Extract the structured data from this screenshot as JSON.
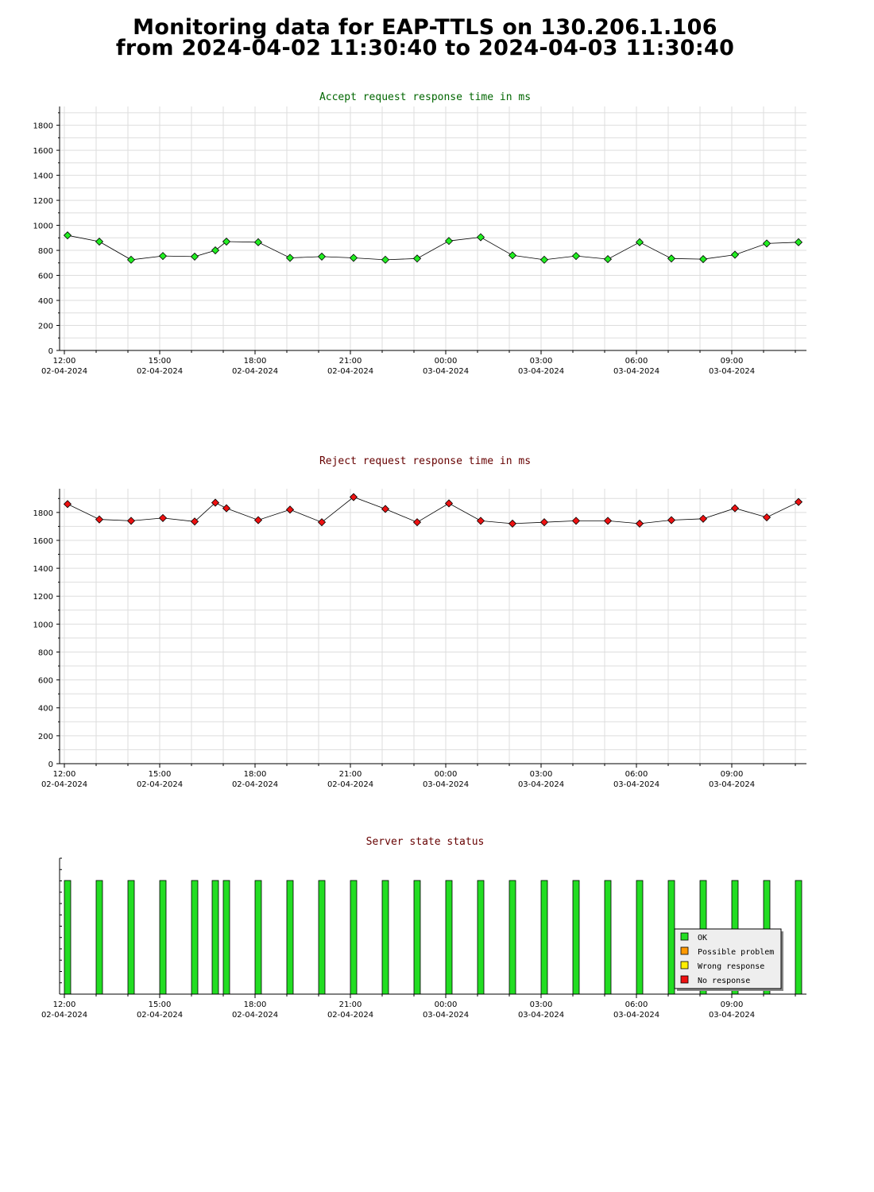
{
  "header": {
    "line1": "Monitoring data for EAP-TTLS on 130.206.1.106",
    "line2": "from 2024-04-02 11:30:40 to 2024-04-03 11:30:40"
  },
  "colors": {
    "accept_title": "#006600",
    "reject_title": "#660000",
    "status_title": "#660000",
    "accept_marker": "#22ee22",
    "reject_marker": "#ee1111",
    "grid": "#dddddd",
    "ok": "#22dd22",
    "possible_problem": "#ff9900",
    "wrong_response": "#ffee00",
    "no_response": "#ee1111"
  },
  "x_ticks": [
    {
      "time": "12:00",
      "date": "02-04-2024"
    },
    {
      "time": "15:00",
      "date": "02-04-2024"
    },
    {
      "time": "18:00",
      "date": "02-04-2024"
    },
    {
      "time": "21:00",
      "date": "02-04-2024"
    },
    {
      "time": "00:00",
      "date": "03-04-2024"
    },
    {
      "time": "03:00",
      "date": "03-04-2024"
    },
    {
      "time": "06:00",
      "date": "03-04-2024"
    },
    {
      "time": "09:00",
      "date": "03-04-2024"
    }
  ],
  "chart_data": [
    {
      "type": "line",
      "title": "Accept request response time in ms",
      "x_unit": "hours since 2024-04-02 12:00",
      "xlim": [
        -0.15,
        23.35
      ],
      "ylim": [
        0,
        1950
      ],
      "y_ticks": [
        0,
        200,
        400,
        600,
        800,
        1000,
        1200,
        1400,
        1600,
        1800
      ],
      "grid": true,
      "series": [
        {
          "x": [
            0.1,
            1.1,
            2.1,
            3.1,
            4.1,
            4.75,
            5.1,
            6.1,
            7.1,
            8.1,
            9.1,
            10.1,
            11.1,
            12.1,
            13.1,
            14.1,
            15.1,
            16.1,
            17.1,
            18.1,
            19.1,
            20.1,
            21.1,
            22.1,
            23.1
          ],
          "values": [
            920,
            870,
            725,
            755,
            750,
            800,
            870,
            865,
            740,
            750,
            740,
            725,
            735,
            875,
            905,
            760,
            725,
            755,
            730,
            865,
            735,
            730,
            765,
            855,
            865
          ]
        }
      ]
    },
    {
      "type": "line",
      "title": "Reject request response time in ms",
      "x_unit": "hours since 2024-04-02 12:00",
      "xlim": [
        -0.15,
        23.35
      ],
      "ylim": [
        0,
        1970
      ],
      "y_ticks": [
        0,
        200,
        400,
        600,
        800,
        1000,
        1200,
        1400,
        1600,
        1800
      ],
      "grid": true,
      "series": [
        {
          "x": [
            0.1,
            1.1,
            2.1,
            3.1,
            4.1,
            4.75,
            5.1,
            6.1,
            7.1,
            8.1,
            9.1,
            10.1,
            11.1,
            12.1,
            13.1,
            14.1,
            15.1,
            16.1,
            17.1,
            18.1,
            19.1,
            20.1,
            21.1,
            22.1,
            23.1
          ],
          "values": [
            1860,
            1750,
            1740,
            1760,
            1735,
            1870,
            1830,
            1745,
            1820,
            1730,
            1910,
            1825,
            1730,
            1865,
            1740,
            1720,
            1730,
            1740,
            1740,
            1720,
            1745,
            1755,
            1830,
            1765,
            1875
          ]
        }
      ]
    },
    {
      "type": "bar",
      "title": "Server state status",
      "x_unit": "hours since 2024-04-02 12:00",
      "xlim": [
        -0.15,
        23.35
      ],
      "legend_position": "bottom-right",
      "legend": [
        "OK",
        "Possible problem",
        "Wrong response",
        "No response"
      ],
      "x": [
        0.1,
        1.1,
        2.1,
        3.1,
        4.1,
        4.75,
        5.1,
        6.1,
        7.1,
        8.1,
        9.1,
        10.1,
        11.1,
        12.1,
        13.1,
        14.1,
        15.1,
        16.1,
        17.1,
        18.1,
        19.1,
        20.1,
        21.1,
        22.1,
        23.1
      ],
      "status": [
        "OK",
        "OK",
        "OK",
        "OK",
        "OK",
        "OK",
        "OK",
        "OK",
        "OK",
        "OK",
        "OK",
        "OK",
        "OK",
        "OK",
        "OK",
        "OK",
        "OK",
        "OK",
        "OK",
        "OK",
        "OK",
        "OK",
        "OK",
        "OK",
        "OK"
      ]
    }
  ]
}
